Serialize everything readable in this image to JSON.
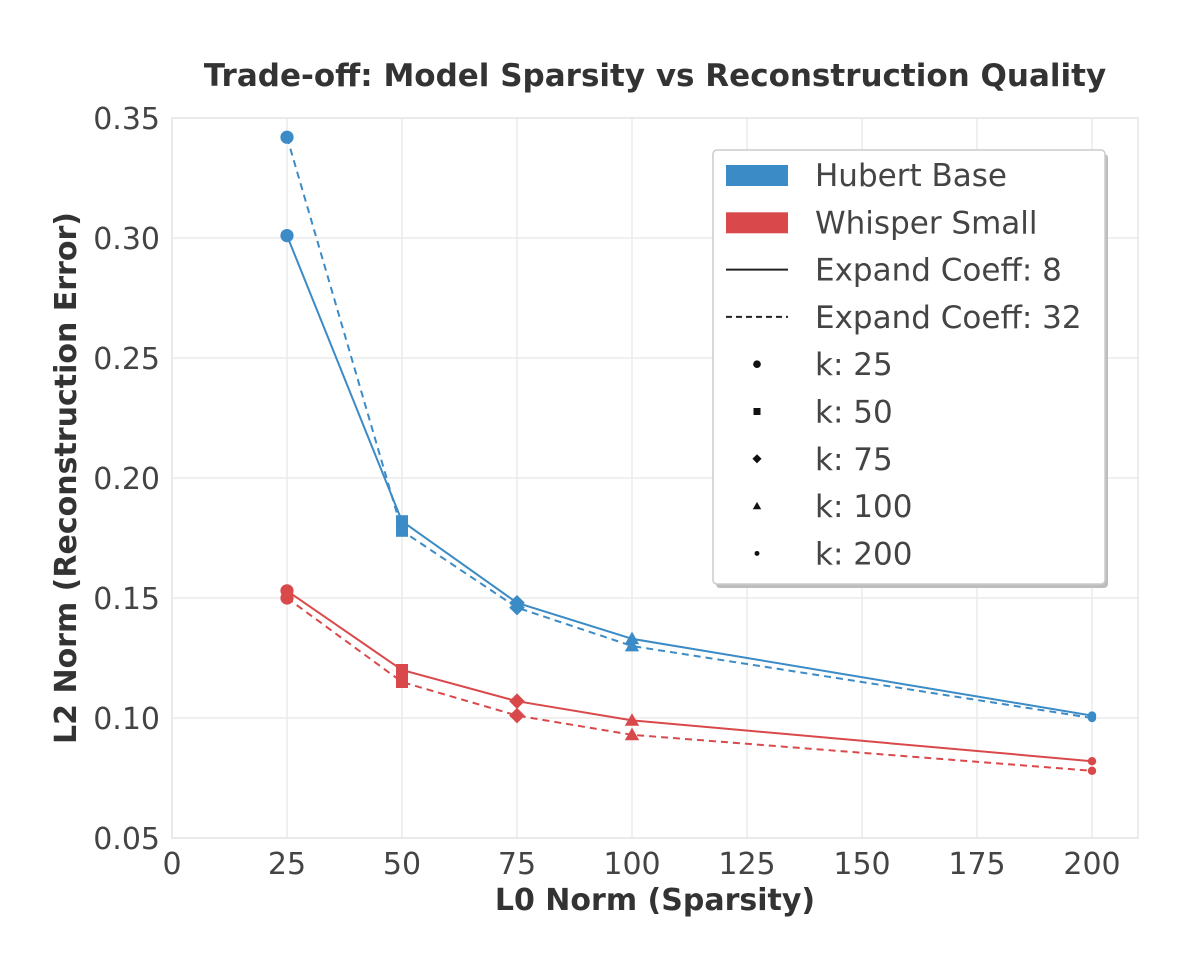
{
  "colors": {
    "hubert": "#3b8bc6",
    "whisper": "#d9494b",
    "marker": "#111111"
  },
  "chart_data": {
    "type": "line",
    "title": "Trade-off: Model Sparsity vs Reconstruction Quality",
    "xlabel": "L0 Norm (Sparsity)",
    "ylabel": "L2 Norm (Reconstruction Error)",
    "xlim": [
      0,
      210
    ],
    "ylim": [
      0.05,
      0.35
    ],
    "x_ticks": [
      {
        "value": 0,
        "label": "0"
      },
      {
        "value": 25,
        "label": "25"
      },
      {
        "value": 50,
        "label": "50"
      },
      {
        "value": 75,
        "label": "75"
      },
      {
        "value": 100,
        "label": "100"
      },
      {
        "value": 125,
        "label": "125"
      },
      {
        "value": 150,
        "label": "150"
      },
      {
        "value": 175,
        "label": "175"
      },
      {
        "value": 200,
        "label": "200"
      }
    ],
    "y_ticks": [
      {
        "value": 0.05,
        "label": "0.05"
      },
      {
        "value": 0.1,
        "label": "0.10"
      },
      {
        "value": 0.15,
        "label": "0.15"
      },
      {
        "value": 0.2,
        "label": "0.20"
      },
      {
        "value": 0.25,
        "label": "0.25"
      },
      {
        "value": 0.3,
        "label": "0.30"
      },
      {
        "value": 0.35,
        "label": "0.35"
      }
    ],
    "grid": true,
    "legend_position": "top-right",
    "series": [
      {
        "model": "Hubert Base",
        "color_key": "hubert",
        "linestyle": "solid",
        "x": [
          25,
          50,
          75,
          100,
          200
        ],
        "y": [
          0.301,
          0.182,
          0.148,
          0.133,
          0.101
        ]
      },
      {
        "model": "Hubert Base",
        "color_key": "hubert",
        "linestyle": "dashed",
        "x": [
          25,
          50,
          75,
          100,
          200
        ],
        "y": [
          0.342,
          0.178,
          0.146,
          0.13,
          0.1
        ]
      },
      {
        "model": "Whisper Small",
        "color_key": "whisper",
        "linestyle": "solid",
        "x": [
          25,
          50,
          75,
          100,
          200
        ],
        "y": [
          0.153,
          0.12,
          0.107,
          0.099,
          0.082
        ]
      },
      {
        "model": "Whisper Small",
        "color_key": "whisper",
        "linestyle": "dashed",
        "x": [
          25,
          50,
          75,
          100,
          200
        ],
        "y": [
          0.15,
          0.115,
          0.101,
          0.093,
          0.078
        ]
      }
    ],
    "marker_shapes": {
      "25": "circle",
      "50": "square",
      "75": "diamond",
      "100": "triangle",
      "200": "point"
    },
    "legend": {
      "entries": [
        {
          "label": "Hubert Base",
          "kind": "patch",
          "color_key": "hubert"
        },
        {
          "label": "Whisper Small",
          "kind": "patch",
          "color_key": "whisper"
        },
        {
          "label": "Expand Coeff: 8",
          "kind": "line",
          "linestyle": "solid"
        },
        {
          "label": "Expand Coeff: 32",
          "kind": "line",
          "linestyle": "dashed"
        },
        {
          "label": "k: 25",
          "kind": "marker",
          "shape": "circle"
        },
        {
          "label": "k: 50",
          "kind": "marker",
          "shape": "square"
        },
        {
          "label": "k: 75",
          "kind": "marker",
          "shape": "diamond"
        },
        {
          "label": "k: 100",
          "kind": "marker",
          "shape": "triangle"
        },
        {
          "label": "k: 200",
          "kind": "marker",
          "shape": "point"
        }
      ]
    }
  }
}
